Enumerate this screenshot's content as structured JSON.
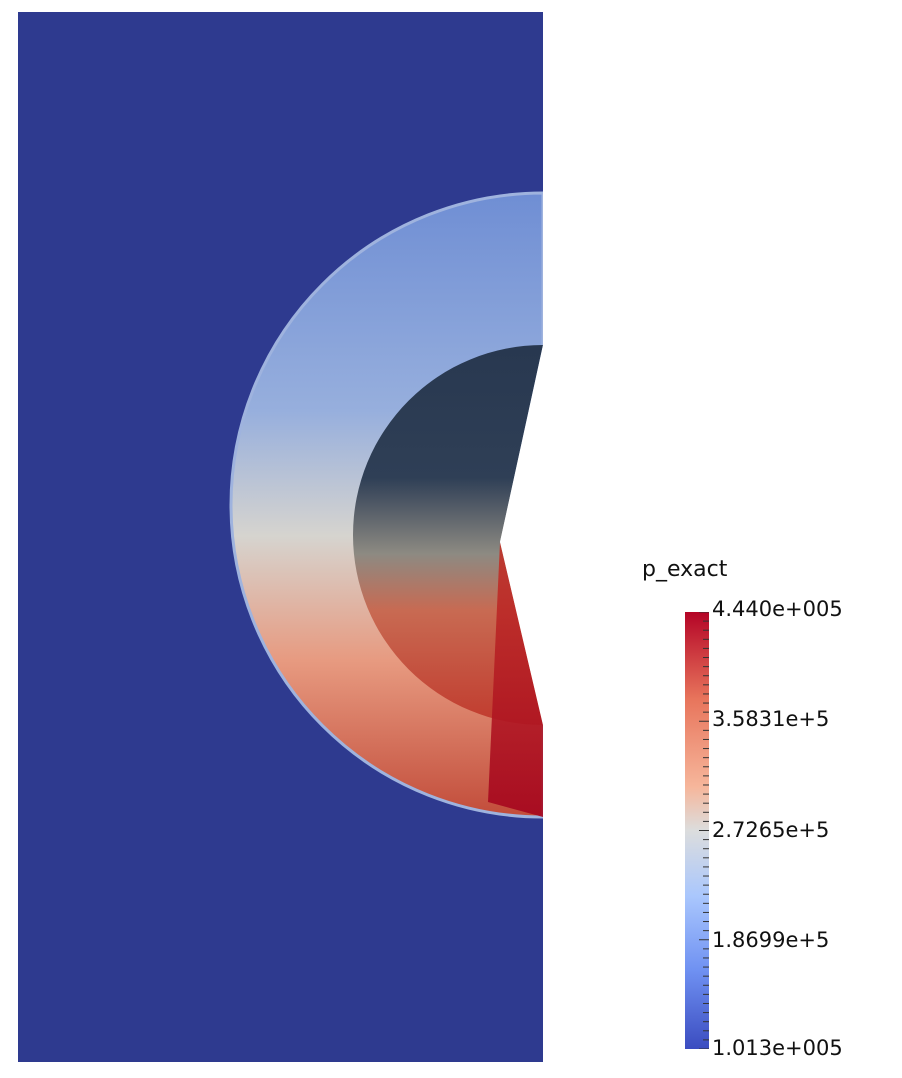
{
  "colors": {
    "background": "#2e3a8f",
    "colormap": [
      "#3b4cc0",
      "#6f91f2",
      "#aac7fd",
      "#dcdddd",
      "#f6b69b",
      "#e8755c",
      "#b40426"
    ],
    "dark_core": "#26354f",
    "mid_core": "#8c8b86"
  },
  "scalar_bar": {
    "title": "p_exact",
    "labels": [
      "4.440e+005",
      "3.5831e+5",
      "2.7265e+5",
      "1.8699e+5",
      "1.013e+005"
    ],
    "range": [
      101300,
      444000
    ]
  }
}
